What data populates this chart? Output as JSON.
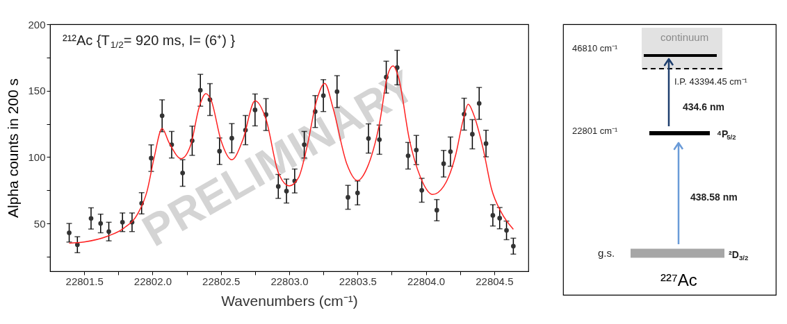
{
  "chart_data": [
    {
      "type": "scatter",
      "title": "²¹²Ac {T$_{1/2}$= 920 ms, I= (6⁺) }",
      "xlabel": "Wavenumbers (cm⁻¹)",
      "ylabel": "Alpha counts in 200 s",
      "xlim": [
        22801.25,
        22804.75
      ],
      "ylim": [
        14,
        200
      ],
      "xticks": [
        {
          "value": 22801.5,
          "label": "22801.5"
        },
        {
          "value": 22801.75,
          "label": null
        },
        {
          "value": 22802.0,
          "label": "22802.0"
        },
        {
          "value": 22802.25,
          "label": null
        },
        {
          "value": 22802.5,
          "label": "22802.5"
        },
        {
          "value": 22802.75,
          "label": null
        },
        {
          "value": 22803.0,
          "label": "22803.0"
        },
        {
          "value": 22803.25,
          "label": null
        },
        {
          "value": 22803.5,
          "label": "22803.5"
        },
        {
          "value": 22803.75,
          "label": null
        },
        {
          "value": 22804.0,
          "label": "22804.0"
        },
        {
          "value": 22804.25,
          "label": null
        },
        {
          "value": 22804.5,
          "label": "22804.5"
        }
      ],
      "yticks": [
        {
          "value": 25,
          "label": null
        },
        50,
        {
          "value": 75,
          "label": null
        },
        100,
        {
          "value": 125,
          "label": null
        },
        150,
        {
          "value": 175,
          "label": null
        },
        200
      ],
      "grid": false,
      "annotations": [
        "PRELIMINARY"
      ],
      "series": [
        {
          "type": "scatter",
          "color": "#333333",
          "marker": "circle",
          "x": [
            22801.39,
            22801.45,
            22801.55,
            22801.62,
            22801.68,
            22801.78,
            22801.85,
            22801.92,
            22801.99,
            22802.07,
            22802.14,
            22802.22,
            22802.29,
            22802.35,
            22802.42,
            22802.49,
            22802.58,
            22802.68,
            22802.75,
            22802.83,
            22802.92,
            22802.98,
            22803.04,
            22803.11,
            22803.19,
            22803.25,
            22803.35,
            22803.43,
            22803.5,
            22803.58,
            22803.66,
            22803.71,
            22803.79,
            22803.87,
            22803.93,
            22803.97,
            22804.08,
            22804.13,
            22804.18,
            22804.28,
            22804.34,
            22804.39,
            22804.44,
            22804.49,
            22804.54,
            22804.59,
            22804.64
          ],
          "values": [
            43.0,
            34.0,
            53.8,
            50.0,
            43.9,
            50.9,
            50.9,
            65.2,
            99.2,
            131.1,
            109.3,
            88.0,
            112.3,
            150.3,
            143.3,
            104.4,
            114.2,
            120.3,
            135.5,
            132.0,
            77.9,
            74.4,
            82.0,
            109.3,
            134.3,
            146.3,
            149.3,
            69.7,
            73.0,
            114.0,
            113.1,
            160.2,
            167.4,
            101.0,
            105.3,
            75.0,
            60.0,
            95.0,
            104.1,
            132.3,
            117.2,
            140.4,
            110.2,
            56.1,
            54.0,
            44.8,
            32.9
          ],
          "errors": [
            7,
            6,
            8,
            7,
            7,
            7,
            7,
            8,
            10,
            12,
            10,
            10,
            11,
            12,
            12,
            10,
            11,
            11,
            12,
            12,
            9,
            9,
            9,
            10,
            12,
            12,
            12,
            9,
            9,
            11,
            11,
            12,
            13,
            10,
            11,
            9,
            8,
            10,
            11,
            12,
            11,
            12,
            10,
            8,
            8,
            7,
            6
          ]
        },
        {
          "type": "line",
          "color": "#ff2020",
          "marker": "none",
          "line_style": "solid",
          "x": [
            22801.39,
            22801.5,
            22801.67,
            22801.79,
            22801.89,
            22801.96,
            22802.01,
            22802.07,
            22802.12,
            22802.21,
            22802.28,
            22802.34,
            22802.39,
            22802.43,
            22802.5,
            22802.58,
            22802.66,
            22802.75,
            22802.83,
            22802.92,
            22803.0,
            22803.07,
            22803.13,
            22803.2,
            22803.26,
            22803.32,
            22803.42,
            22803.5,
            22803.57,
            22803.66,
            22803.72,
            22803.76,
            22803.8,
            22803.88,
            22803.96,
            22804.05,
            22804.13,
            22804.22,
            22804.27,
            22804.31,
            22804.35,
            22804.42,
            22804.48,
            22804.55,
            22804.64
          ],
          "values": [
            35.2,
            36.1,
            40.4,
            46.5,
            57.0,
            74.4,
            98.8,
            121.5,
            111.0,
            98.8,
            109.3,
            137.2,
            147.7,
            142.4,
            112.8,
            98.0,
            112.8,
            142.4,
            128.5,
            88.4,
            78.3,
            84.9,
            107.6,
            142.4,
            155.5,
            137.2,
            95.3,
            82.3,
            91.9,
            125.0,
            161.6,
            168.6,
            159.9,
            112.8,
            84.9,
            71.8,
            77.9,
            102.4,
            126.8,
            139.8,
            132.0,
            105.8,
            76.2,
            58.7,
            45.6
          ]
        }
      ]
    },
    {
      "type": "other",
      "annotations": [
        "continuum",
        "46810 cm⁻¹",
        "I.P. 43394.45 cm⁻¹",
        "434.6 nm",
        "22801 cm⁻¹",
        "⁴P$_{5/2}$",
        "438.58 nm",
        "g.s.",
        "²D$_{3/2}$",
        "²²⁷Ac"
      ]
    }
  ]
}
